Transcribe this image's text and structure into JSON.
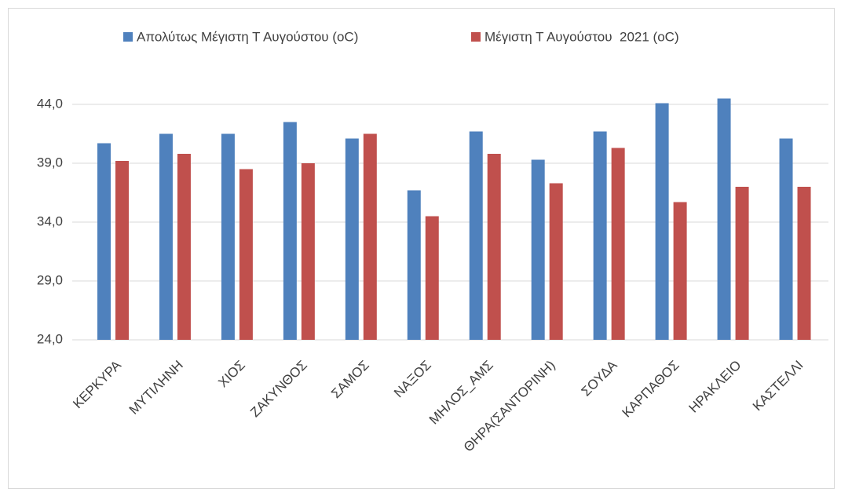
{
  "chart_data": {
    "type": "bar",
    "categories": [
      "ΚΕΡΚΥΡΑ",
      "ΜΥΤΙΛΗΝΗ",
      "ΧΙΟΣ",
      "ΖΑΚΥΝΘΟΣ",
      "ΣΑΜΟΣ",
      "ΝΑΞΟΣ",
      "ΜΗΛΟΣ_ΑΜΣ",
      "ΘΗΡΑ(ΣΑΝΤΟΡΙΝΗ)",
      "ΣΟΥΔΑ",
      "ΚΑΡΠΑΘΟΣ",
      "ΗΡΑΚΛΕΙΟ",
      "ΚΑΣΤΕΛΛΙ"
    ],
    "series": [
      {
        "name": "Απολύτως Μέγιστη Τ Αυγούστου (oC)",
        "color": "#4f81bd",
        "values": [
          40.7,
          41.5,
          41.5,
          42.5,
          41.1,
          36.7,
          41.7,
          39.3,
          41.7,
          44.1,
          44.5,
          41.1
        ]
      },
      {
        "name": "Μέγιστη Τ Αυγούστου  2021 (oC)",
        "color": "#c0504d",
        "values": [
          39.2,
          39.8,
          38.5,
          39.0,
          41.5,
          34.5,
          39.8,
          37.3,
          40.3,
          35.7,
          37.0,
          37.0
        ]
      }
    ],
    "ylim": [
      24,
      45
    ],
    "yticks": [
      {
        "value": 24,
        "label": "24,0"
      },
      {
        "value": 29,
        "label": "29,0"
      },
      {
        "value": 34,
        "label": "34,0"
      },
      {
        "value": 39,
        "label": "39,0"
      },
      {
        "value": 44,
        "label": "44,0"
      }
    ],
    "grid": true,
    "legend": "top"
  }
}
